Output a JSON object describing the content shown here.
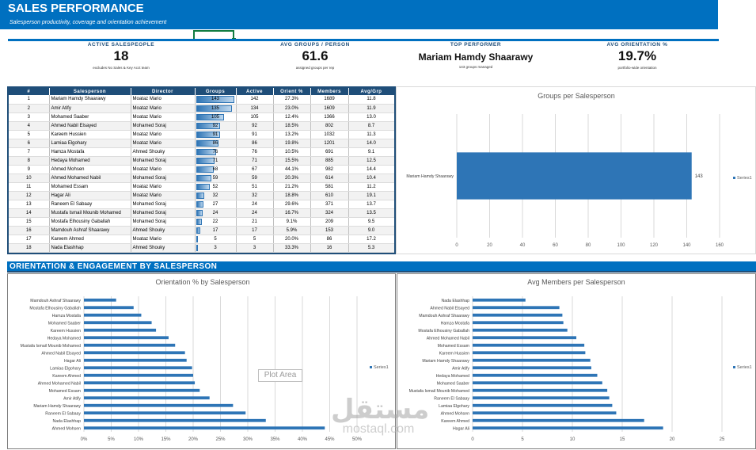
{
  "header": {
    "title": "SALES PERFORMANCE",
    "subtitle": "Salesperson productivity, coverage and orientation achievement"
  },
  "kpis": [
    {
      "label": "ACTIVE SALESPEOPLE",
      "value": "18",
      "note": "excludes No Sales & Key Acct team"
    },
    {
      "label": "AVG GROUPS / PERSON",
      "value": "61.6",
      "note": "assigned groups per rep"
    },
    {
      "label": "TOP PERFORMER",
      "value": "Mariam Hamdy Shaarawy",
      "note": "143 groups managed"
    },
    {
      "label": "AVG ORIENTATION %",
      "value": "19.7%",
      "note": "portfolio-wide orientation"
    }
  ],
  "table": {
    "columns": [
      "#",
      "Salesperson",
      "Director",
      "Groups",
      "Active",
      "Orient %",
      "Members",
      "Avg/Grp"
    ],
    "rows": [
      [
        "1",
        "Mariam Hamdy Shaarawy",
        "Moataz Mario",
        "143",
        "142",
        "27.3%",
        "1689",
        "11.8"
      ],
      [
        "2",
        "Amir Atify",
        "Moataz Mario",
        "135",
        "134",
        "23.0%",
        "1609",
        "11.9"
      ],
      [
        "3",
        "Mohamed Saaber",
        "Moataz Mario",
        "105",
        "105",
        "12.4%",
        "1366",
        "13.0"
      ],
      [
        "4",
        "Ahmed Nabil Elsayed",
        "Mohamed Soraj",
        "92",
        "92",
        "18.5%",
        "802",
        "8.7"
      ],
      [
        "5",
        "Kareem Hussien",
        "Moataz Mario",
        "91",
        "91",
        "13.2%",
        "1032",
        "11.3"
      ],
      [
        "6",
        "Lamiaa Elgohary",
        "Moataz Mario",
        "86",
        "86",
        "19.8%",
        "1201",
        "14.0"
      ],
      [
        "7",
        "Hamza Mostafa",
        "Ahmed Shouky",
        "76",
        "76",
        "10.5%",
        "691",
        "9.1"
      ],
      [
        "8",
        "Hedaya Mohamed",
        "Mohamed Soraj",
        "71",
        "71",
        "15.5%",
        "885",
        "12.5"
      ],
      [
        "9",
        "Ahmed Mohsen",
        "Moataz Mario",
        "68",
        "67",
        "44.1%",
        "982",
        "14.4"
      ],
      [
        "10",
        "Ahmed Mohamed Nabil",
        "Mohamed Soraj",
        "59",
        "59",
        "20.3%",
        "614",
        "10.4"
      ],
      [
        "11",
        "Mohamed Essam",
        "Moataz Mario",
        "52",
        "51",
        "21.2%",
        "581",
        "11.2"
      ],
      [
        "12",
        "Hagar Ali",
        "Moataz Mario",
        "32",
        "32",
        "18.8%",
        "610",
        "19.1"
      ],
      [
        "13",
        "Raneem El Sabaay",
        "Mohamed Soraj",
        "27",
        "24",
        "29.6%",
        "371",
        "13.7"
      ],
      [
        "14",
        "Mustafa Ismail Mounib Mohamed",
        "Mohamed Soraj",
        "24",
        "24",
        "16.7%",
        "324",
        "13.5"
      ],
      [
        "15",
        "Mostafa Elhousiny Gaballah",
        "Mohamed Soraj",
        "22",
        "21",
        "9.1%",
        "209",
        "9.5"
      ],
      [
        "16",
        "Mamdouh Ashraf Shaarawy",
        "Ahmed Shouky",
        "17",
        "17",
        "5.9%",
        "153",
        "9.0"
      ],
      [
        "17",
        "Kareem Ahmed",
        "Moataz Mario",
        "5",
        "5",
        "20.0%",
        "86",
        "17.2"
      ],
      [
        "18",
        "Nada Elashhap",
        "Ahmed Shouky",
        "3",
        "3",
        "33.3%",
        "16",
        "5.3"
      ]
    ],
    "groups_bar_max": 143
  },
  "section2": {
    "title": "ORIENTATION & ENGAGEMENT BY SALESPERSON"
  },
  "plot_area_tooltip": "Plot Area",
  "watermark": {
    "arabic": "مستقل",
    "latin": "mostaql.com"
  },
  "colors": {
    "brand": "#0070c0",
    "dark": "#1f4e79",
    "bar": "#2e75b6",
    "grid": "#d9d9d9"
  },
  "chart_data": [
    {
      "type": "bar",
      "orientation": "horizontal",
      "title": "Groups per Salesperson",
      "categories": [
        "Mariam Hamdy Shaarawy"
      ],
      "series": [
        {
          "name": "Series1",
          "values": [
            143
          ]
        }
      ],
      "data_labels": [
        "143"
      ],
      "xlim": [
        0,
        160
      ],
      "xticks": [
        0,
        20,
        40,
        60,
        80,
        100,
        120,
        140,
        160
      ],
      "grid": true,
      "legend": "right"
    },
    {
      "type": "bar",
      "orientation": "horizontal",
      "title": "Orientation % by Salesperson",
      "categories": [
        "Mamdouh Ashraf Shaarawy",
        "Mostafa Elhousiny Gaballah",
        "Hamza Mostafa",
        "Mohamed Saaber",
        "Kareem Hussien",
        "Hedaya Mohamed",
        "Mustafa Ismail Mounib Mohamed",
        "Ahmed Nabil Elsayed",
        "Hagar Ali",
        "Lamiaa Elgohary",
        "Kareem Ahmed",
        "Ahmed Mohamed Nabil",
        "Mohamed Essam",
        "Amir Atify",
        "Mariam Hamdy Shaarawy",
        "Raneem El Sabaay",
        "Nada Elashhap",
        "Ahmed Mohsen"
      ],
      "series": [
        {
          "name": "Series1",
          "values": [
            5.9,
            9.1,
            10.5,
            12.4,
            13.2,
            15.5,
            16.7,
            18.5,
            18.8,
            19.8,
            20.0,
            20.3,
            21.2,
            23.0,
            27.3,
            29.6,
            33.3,
            44.1
          ]
        }
      ],
      "xlim": [
        0,
        50
      ],
      "xticks": [
        "0%",
        "5%",
        "10%",
        "15%",
        "20%",
        "25%",
        "30%",
        "35%",
        "40%",
        "45%",
        "50%"
      ],
      "grid": true,
      "legend": "right"
    },
    {
      "type": "bar",
      "orientation": "horizontal",
      "title": "Avg Members per Salesperson",
      "categories": [
        "Nada Elashhap",
        "Ahmed Nabil Elsayed",
        "Mamdouh Ashraf Shaarawy",
        "Hamza Mostafa",
        "Mostafa Elhousiny Gaballah",
        "Ahmed Mohamed Nabil",
        "Mohamed Essam",
        "Kareem Hussien",
        "Mariam Hamdy Shaarawy",
        "Amir Atify",
        "Hedaya Mohamed",
        "Mohamed Saaber",
        "Mustafa Ismail Mounib Mohamed",
        "Raneem El Sabaay",
        "Lamiaa Elgohary",
        "Ahmed Mohsen",
        "Kareem Ahmed",
        "Hagar Ali"
      ],
      "series": [
        {
          "name": "Series1",
          "values": [
            5.3,
            8.7,
            9.0,
            9.1,
            9.5,
            10.4,
            11.2,
            11.3,
            11.8,
            11.9,
            12.5,
            13.0,
            13.5,
            13.7,
            14.0,
            14.4,
            17.2,
            19.1
          ]
        }
      ],
      "xlim": [
        0,
        25
      ],
      "xticks": [
        0,
        5,
        10,
        15,
        20,
        25
      ],
      "grid": true,
      "legend": "right"
    }
  ]
}
